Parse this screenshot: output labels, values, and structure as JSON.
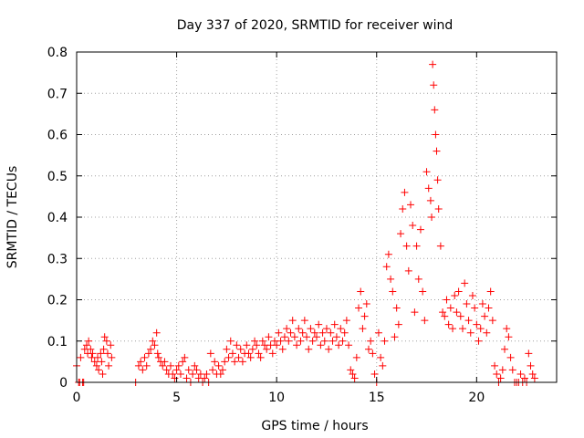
{
  "chart_data": {
    "type": "scatter",
    "title": "Day 337 of 2020, SRMTID for receiver wind",
    "xlabel": "GPS time / hours",
    "ylabel": "SRMTID / TECUs",
    "xlim": [
      0,
      24
    ],
    "ylim": [
      0,
      0.8
    ],
    "xticks": [
      0,
      5,
      10,
      15,
      20
    ],
    "xtick_labels": [
      "0",
      "5",
      "10",
      "15",
      "20"
    ],
    "yticks": [
      0,
      0.1,
      0.2,
      0.3,
      0.4,
      0.5,
      0.6,
      0.7,
      0.8
    ],
    "ytick_labels": [
      "0",
      "0.1",
      "0.2",
      "0.3",
      "0.4",
      "0.5",
      "0.6",
      "0.7",
      "0.8"
    ],
    "grid": true,
    "marker": "+",
    "color": "#ff0000",
    "series": [
      {
        "name": "SRMTID",
        "points": [
          [
            0.0,
            0.04
          ],
          [
            0.1,
            0.0
          ],
          [
            0.15,
            0.0
          ],
          [
            0.2,
            0.06
          ],
          [
            0.3,
            0.0
          ],
          [
            0.35,
            0.0
          ],
          [
            0.4,
            0.08
          ],
          [
            0.5,
            0.09
          ],
          [
            0.55,
            0.07
          ],
          [
            0.6,
            0.1
          ],
          [
            0.7,
            0.08
          ],
          [
            0.75,
            0.06
          ],
          [
            0.8,
            0.07
          ],
          [
            0.9,
            0.05
          ],
          [
            1.0,
            0.04
          ],
          [
            1.05,
            0.06
          ],
          [
            1.1,
            0.03
          ],
          [
            1.2,
            0.07
          ],
          [
            1.25,
            0.05
          ],
          [
            1.3,
            0.02
          ],
          [
            1.35,
            0.08
          ],
          [
            1.4,
            0.11
          ],
          [
            1.5,
            0.1
          ],
          [
            1.55,
            0.07
          ],
          [
            1.6,
            0.04
          ],
          [
            1.7,
            0.09
          ],
          [
            1.75,
            0.06
          ],
          [
            2.95,
            0.0
          ],
          [
            3.1,
            0.04
          ],
          [
            3.2,
            0.05
          ],
          [
            3.3,
            0.03
          ],
          [
            3.4,
            0.06
          ],
          [
            3.5,
            0.04
          ],
          [
            3.6,
            0.07
          ],
          [
            3.7,
            0.08
          ],
          [
            3.8,
            0.1
          ],
          [
            3.9,
            0.09
          ],
          [
            4.0,
            0.12
          ],
          [
            4.05,
            0.07
          ],
          [
            4.1,
            0.06
          ],
          [
            4.2,
            0.05
          ],
          [
            4.3,
            0.04
          ],
          [
            4.4,
            0.05
          ],
          [
            4.5,
            0.03
          ],
          [
            4.6,
            0.02
          ],
          [
            4.7,
            0.04
          ],
          [
            4.8,
            0.02
          ],
          [
            4.9,
            0.01
          ],
          [
            5.0,
            0.03
          ],
          [
            5.1,
            0.04
          ],
          [
            5.2,
            0.02
          ],
          [
            5.3,
            0.05
          ],
          [
            5.4,
            0.06
          ],
          [
            5.5,
            0.01
          ],
          [
            5.6,
            0.03
          ],
          [
            5.7,
            0.0
          ],
          [
            5.8,
            0.02
          ],
          [
            5.9,
            0.04
          ],
          [
            6.0,
            0.03
          ],
          [
            6.1,
            0.01
          ],
          [
            6.2,
            0.02
          ],
          [
            6.3,
            0.0
          ],
          [
            6.4,
            0.01
          ],
          [
            6.5,
            0.02
          ],
          [
            6.6,
            0.0
          ],
          [
            6.7,
            0.07
          ],
          [
            6.8,
            0.03
          ],
          [
            6.9,
            0.05
          ],
          [
            7.0,
            0.02
          ],
          [
            7.1,
            0.04
          ],
          [
            7.2,
            0.02
          ],
          [
            7.3,
            0.03
          ],
          [
            7.4,
            0.05
          ],
          [
            7.5,
            0.08
          ],
          [
            7.6,
            0.06
          ],
          [
            7.7,
            0.1
          ],
          [
            7.8,
            0.07
          ],
          [
            7.9,
            0.05
          ],
          [
            8.0,
            0.09
          ],
          [
            8.1,
            0.06
          ],
          [
            8.2,
            0.08
          ],
          [
            8.3,
            0.05
          ],
          [
            8.4,
            0.07
          ],
          [
            8.5,
            0.09
          ],
          [
            8.6,
            0.07
          ],
          [
            8.7,
            0.06
          ],
          [
            8.8,
            0.08
          ],
          [
            8.9,
            0.1
          ],
          [
            9.0,
            0.09
          ],
          [
            9.1,
            0.07
          ],
          [
            9.2,
            0.06
          ],
          [
            9.3,
            0.1
          ],
          [
            9.4,
            0.09
          ],
          [
            9.5,
            0.08
          ],
          [
            9.6,
            0.11
          ],
          [
            9.7,
            0.09
          ],
          [
            9.8,
            0.07
          ],
          [
            9.9,
            0.1
          ],
          [
            10.0,
            0.09
          ],
          [
            10.1,
            0.12
          ],
          [
            10.2,
            0.1
          ],
          [
            10.3,
            0.08
          ],
          [
            10.4,
            0.11
          ],
          [
            10.5,
            0.13
          ],
          [
            10.6,
            0.1
          ],
          [
            10.7,
            0.12
          ],
          [
            10.8,
            0.15
          ],
          [
            10.9,
            0.11
          ],
          [
            11.0,
            0.09
          ],
          [
            11.1,
            0.13
          ],
          [
            11.2,
            0.1
          ],
          [
            11.3,
            0.12
          ],
          [
            11.4,
            0.15
          ],
          [
            11.5,
            0.11
          ],
          [
            11.6,
            0.08
          ],
          [
            11.7,
            0.13
          ],
          [
            11.8,
            0.1
          ],
          [
            11.9,
            0.12
          ],
          [
            12.0,
            0.11
          ],
          [
            12.1,
            0.14
          ],
          [
            12.2,
            0.09
          ],
          [
            12.3,
            0.12
          ],
          [
            12.4,
            0.1
          ],
          [
            12.5,
            0.13
          ],
          [
            12.6,
            0.08
          ],
          [
            12.7,
            0.12
          ],
          [
            12.8,
            0.1
          ],
          [
            12.9,
            0.14
          ],
          [
            13.0,
            0.11
          ],
          [
            13.1,
            0.09
          ],
          [
            13.2,
            0.13
          ],
          [
            13.3,
            0.1
          ],
          [
            13.4,
            0.12
          ],
          [
            13.5,
            0.15
          ],
          [
            13.6,
            0.09
          ],
          [
            13.7,
            0.03
          ],
          [
            13.8,
            0.02
          ],
          [
            13.9,
            0.01
          ],
          [
            14.0,
            0.06
          ],
          [
            14.1,
            0.18
          ],
          [
            14.2,
            0.22
          ],
          [
            14.3,
            0.13
          ],
          [
            14.4,
            0.16
          ],
          [
            14.5,
            0.19
          ],
          [
            14.6,
            0.08
          ],
          [
            14.7,
            0.1
          ],
          [
            14.8,
            0.07
          ],
          [
            14.9,
            0.02
          ],
          [
            15.0,
            0.0
          ],
          [
            15.1,
            0.12
          ],
          [
            15.2,
            0.06
          ],
          [
            15.3,
            0.04
          ],
          [
            15.4,
            0.1
          ],
          [
            15.5,
            0.28
          ],
          [
            15.6,
            0.31
          ],
          [
            15.7,
            0.25
          ],
          [
            15.8,
            0.22
          ],
          [
            15.9,
            0.11
          ],
          [
            16.0,
            0.18
          ],
          [
            16.1,
            0.14
          ],
          [
            16.2,
            0.36
          ],
          [
            16.3,
            0.42
          ],
          [
            16.4,
            0.46
          ],
          [
            16.5,
            0.33
          ],
          [
            16.6,
            0.27
          ],
          [
            16.7,
            0.43
          ],
          [
            16.8,
            0.38
          ],
          [
            16.9,
            0.17
          ],
          [
            17.0,
            0.33
          ],
          [
            17.1,
            0.25
          ],
          [
            17.2,
            0.37
          ],
          [
            17.3,
            0.22
          ],
          [
            17.4,
            0.15
          ],
          [
            17.5,
            0.51
          ],
          [
            17.6,
            0.47
          ],
          [
            17.7,
            0.44
          ],
          [
            17.75,
            0.4
          ],
          [
            17.8,
            0.77
          ],
          [
            17.85,
            0.72
          ],
          [
            17.9,
            0.66
          ],
          [
            17.95,
            0.6
          ],
          [
            18.0,
            0.56
          ],
          [
            18.05,
            0.49
          ],
          [
            18.1,
            0.42
          ],
          [
            18.2,
            0.33
          ],
          [
            18.3,
            0.17
          ],
          [
            18.4,
            0.16
          ],
          [
            18.5,
            0.2
          ],
          [
            18.6,
            0.14
          ],
          [
            18.7,
            0.18
          ],
          [
            18.8,
            0.13
          ],
          [
            18.9,
            0.21
          ],
          [
            19.0,
            0.17
          ],
          [
            19.1,
            0.22
          ],
          [
            19.2,
            0.16
          ],
          [
            19.3,
            0.13
          ],
          [
            19.4,
            0.24
          ],
          [
            19.5,
            0.19
          ],
          [
            19.6,
            0.15
          ],
          [
            19.7,
            0.12
          ],
          [
            19.8,
            0.21
          ],
          [
            19.9,
            0.18
          ],
          [
            20.0,
            0.14
          ],
          [
            20.1,
            0.1
          ],
          [
            20.2,
            0.13
          ],
          [
            20.3,
            0.19
          ],
          [
            20.4,
            0.16
          ],
          [
            20.5,
            0.12
          ],
          [
            20.6,
            0.18
          ],
          [
            20.7,
            0.22
          ],
          [
            20.8,
            0.15
          ],
          [
            20.9,
            0.04
          ],
          [
            21.0,
            0.02
          ],
          [
            21.1,
            0.0
          ],
          [
            21.2,
            0.01
          ],
          [
            21.3,
            0.03
          ],
          [
            21.4,
            0.08
          ],
          [
            21.5,
            0.13
          ],
          [
            21.6,
            0.11
          ],
          [
            21.7,
            0.06
          ],
          [
            21.8,
            0.03
          ],
          [
            21.9,
            0.0
          ],
          [
            22.0,
            0.0
          ],
          [
            22.1,
            0.0
          ],
          [
            22.2,
            0.02
          ],
          [
            22.3,
            0.0
          ],
          [
            22.4,
            0.01
          ],
          [
            22.5,
            0.0
          ],
          [
            22.6,
            0.07
          ],
          [
            22.7,
            0.04
          ],
          [
            22.8,
            0.02
          ],
          [
            22.9,
            0.01
          ]
        ]
      }
    ]
  }
}
